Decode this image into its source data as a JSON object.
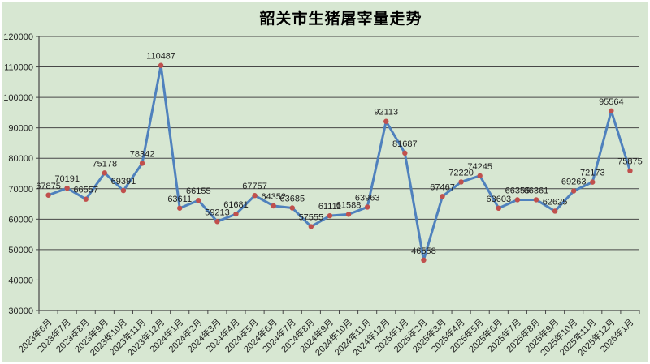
{
  "chart": {
    "background_color": "#d7e7d2",
    "frame_border_color": "#ffffff",
    "line_color": "#4f81bd",
    "marker_color": "#c0504d",
    "grid_color": "#474747",
    "axis_color": "#474747",
    "text_color": "#1f1f1f",
    "title_color": "#000000"
  },
  "chart_data": {
    "type": "line",
    "title": "韶关市生猪屠宰量走势",
    "xlabel": "",
    "ylabel": "",
    "ylim": [
      30000,
      120000
    ],
    "ytick_step": 10000,
    "grid": true,
    "legend": "none",
    "marker": "circle",
    "data_labels": true,
    "categories": [
      "2023年6月",
      "2023年7月",
      "2023年8月",
      "2023年9月",
      "2023年10月",
      "2023年11月",
      "2023年12月",
      "2024年1月",
      "2024年2月",
      "2024年3月",
      "2024年4月",
      "2024年5月",
      "2024年6月",
      "2024年7月",
      "2024年8月",
      "2024年9月",
      "2024年10月",
      "2024年11月",
      "2024年12月",
      "2025年1月",
      "2025年2月",
      "2025年3月",
      "2025年4月",
      "2025年5月",
      "2025年6月",
      "2025年7月",
      "2025年8月",
      "2025年9月",
      "2025年10月",
      "2025年11月",
      "2025年12月",
      "2026年1月"
    ],
    "values": [
      67875,
      70191,
      66557,
      75178,
      69391,
      78342,
      110487,
      63611,
      66155,
      59213,
      61681,
      67757,
      64352,
      63685,
      57555,
      61111,
      61588,
      63963,
      92113,
      81687,
      46558,
      67467,
      72220,
      74245,
      63603,
      66355,
      66361,
      62625,
      69263,
      72173,
      95564,
      75875
    ]
  }
}
